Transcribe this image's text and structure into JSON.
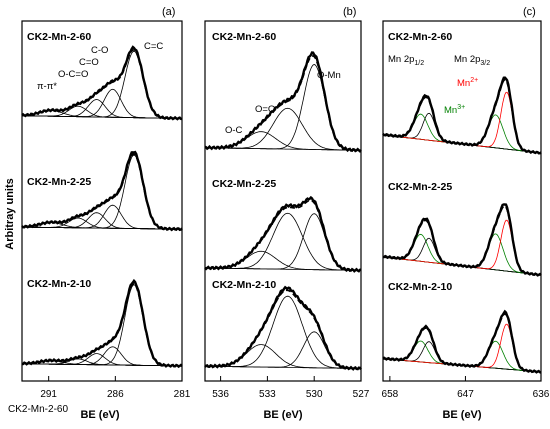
{
  "figure": {
    "y_axis_title": "Arbitray units",
    "x_axis_title": "BE (eV)",
    "stray_label": "CK2-Mn-2-60"
  },
  "chart_data": [
    {
      "type": "line",
      "panel_label": "(a)",
      "xlabel": "BE (eV)",
      "ylabel": "Arbitray units",
      "xlim": [
        293,
        281
      ],
      "x_reversed": true,
      "x_ticks": [
        "291",
        "286",
        "281"
      ],
      "x_tick_values": [
        291,
        286,
        281
      ],
      "annotations": [
        "C=C",
        "C-O",
        "C=O",
        "O-C=O",
        "π-π*"
      ],
      "annotation_x": [
        284.0,
        287.5,
        288.2,
        289.1,
        290.9
      ],
      "components": [
        {
          "label": "C=C",
          "center": 284.6,
          "fwhm": 1.6
        },
        {
          "label": "C-O",
          "center": 286.2,
          "fwhm": 1.5
        },
        {
          "label": "C=O",
          "center": 287.4,
          "fwhm": 1.5
        },
        {
          "label": "O-C=O",
          "center": 288.8,
          "fwhm": 1.6
        },
        {
          "label": "π-π*",
          "center": 290.8,
          "fwhm": 2.0
        }
      ],
      "samples": [
        {
          "name": "CK2-Mn-2-60",
          "amplitudes": [
            0.95,
            0.4,
            0.25,
            0.15,
            0.08
          ],
          "baseline": [
            0.09,
            0.05
          ]
        },
        {
          "name": "CK2-Mn-2-25",
          "amplitudes": [
            1.05,
            0.33,
            0.22,
            0.14,
            0.07
          ],
          "baseline": [
            0.07,
            0.04
          ]
        },
        {
          "name": "CK2-Mn-2-10",
          "amplitudes": [
            1.15,
            0.26,
            0.16,
            0.08,
            0.05
          ],
          "baseline": [
            0.06,
            0.03
          ]
        }
      ]
    },
    {
      "type": "line",
      "panel_label": "(b)",
      "xlabel": "BE (eV)",
      "xlim": [
        537,
        527
      ],
      "x_reversed": true,
      "x_ticks": [
        "536",
        "533",
        "530",
        "527"
      ],
      "x_tick_values": [
        536,
        533,
        530,
        527
      ],
      "annotations": [
        "O-Mn",
        "O=C",
        "O-C"
      ],
      "annotation_x": [
        528.8,
        532.2,
        534.4
      ],
      "components": [
        {
          "label": "O-Mn",
          "center": 530.0,
          "fwhm": 1.6
        },
        {
          "label": "O=C",
          "center": 531.7,
          "fwhm": 2.2
        },
        {
          "label": "O-C",
          "center": 533.4,
          "fwhm": 2.2
        }
      ],
      "samples": [
        {
          "name": "CK2-Mn-2-60",
          "amplitudes": [
            1.0,
            0.48,
            0.2
          ],
          "baseline": [
            0.05,
            0.02
          ]
        },
        {
          "name": "CK2-Mn-2-25",
          "amplitudes": [
            0.7,
            0.7,
            0.22
          ],
          "baseline": [
            0.05,
            0.02
          ]
        },
        {
          "name": "CK2-Mn-2-10",
          "amplitudes": [
            0.48,
            0.95,
            0.3
          ],
          "baseline": [
            0.05,
            0.02
          ]
        }
      ]
    },
    {
      "type": "line",
      "panel_label": "(c)",
      "xlabel": "BE (eV)",
      "xlim": [
        659,
        636
      ],
      "x_reversed": true,
      "x_ticks": [
        "658",
        "647",
        "636"
      ],
      "x_tick_values": [
        658,
        647,
        636
      ],
      "annotations": [
        "Mn 2p",
        "1/2",
        "Mn 2p",
        "3/2",
        "Mn",
        "2+",
        "Mn",
        "3+"
      ],
      "annotation_x": [
        652.5,
        641.8,
        640.5,
        645.0
      ],
      "annotation_colors": {
        "Mn2+": "#ff0000",
        "Mn3+": "#008000"
      },
      "components": [
        {
          "label": "Mn3+",
          "center": 653.5,
          "fwhm": 2.4,
          "color": "#008000"
        },
        {
          "label": "Mn2+",
          "center": 652.3,
          "fwhm": 2.0,
          "color": "#000000"
        },
        {
          "label": "Mn3+",
          "center": 642.6,
          "fwhm": 2.5,
          "color": "#008000"
        },
        {
          "label": "Mn2+",
          "center": 641.0,
          "fwhm": 2.0,
          "color": "#ff0000"
        }
      ],
      "samples": [
        {
          "name": "CK2-Mn-2-60",
          "amplitudes": [
            0.42,
            0.45,
            0.55,
            0.95
          ],
          "baseline": [
            0.3,
            0.0
          ]
        },
        {
          "name": "CK2-Mn-2-25",
          "amplitudes": [
            0.45,
            0.4,
            0.6,
            0.85
          ],
          "baseline": [
            0.3,
            0.0
          ]
        },
        {
          "name": "CK2-Mn-2-10",
          "amplitudes": [
            0.35,
            0.35,
            0.45,
            0.75
          ],
          "baseline": [
            0.22,
            0.0
          ]
        }
      ]
    }
  ]
}
